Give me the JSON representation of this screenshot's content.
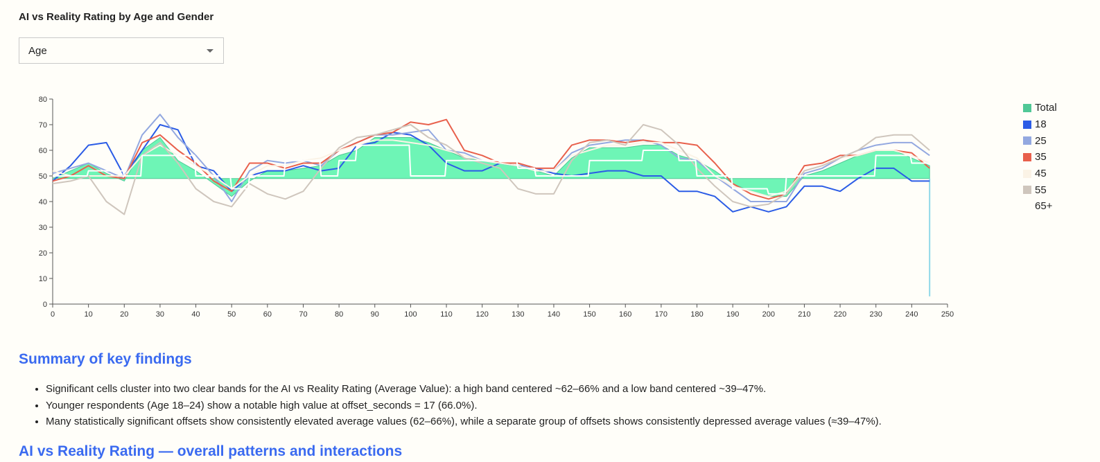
{
  "page": {
    "title": "AI vs Reality Rating by Age and Gender"
  },
  "filter": {
    "selected": "Age",
    "icon": "chevron-down-icon"
  },
  "legend": [
    {
      "label": "Total",
      "color": "#50c896"
    },
    {
      "label": "18",
      "color": "#2b5ce6"
    },
    {
      "label": "25",
      "color": "#93a8e0"
    },
    {
      "label": "35",
      "color": "#e8604c"
    },
    {
      "label": "45",
      "color": "#fbf3e6"
    },
    {
      "label": "55",
      "color": "#cfc6bd"
    },
    {
      "label": "65+",
      "color": "#fffef9"
    }
  ],
  "chart_data": {
    "type": "line",
    "xlabel": "",
    "ylabel": "",
    "xlim": [
      0,
      250
    ],
    "ylim": [
      0,
      80
    ],
    "xticks": [
      0,
      10,
      20,
      30,
      40,
      50,
      60,
      70,
      80,
      90,
      100,
      110,
      120,
      130,
      140,
      150,
      160,
      170,
      180,
      190,
      200,
      210,
      220,
      230,
      240,
      250
    ],
    "yticks": [
      0,
      10,
      20,
      30,
      40,
      50,
      60,
      70,
      80
    ],
    "baseline": 49,
    "legend_position": "right",
    "grid": false,
    "x": [
      0,
      5,
      10,
      15,
      20,
      25,
      30,
      35,
      40,
      45,
      50,
      55,
      60,
      65,
      70,
      75,
      80,
      85,
      90,
      95,
      100,
      105,
      110,
      115,
      120,
      125,
      130,
      135,
      140,
      145,
      150,
      155,
      160,
      165,
      170,
      175,
      180,
      185,
      190,
      195,
      200,
      205,
      210,
      215,
      220,
      225,
      230,
      235,
      240,
      245
    ],
    "series": [
      {
        "name": "Total",
        "color": "#50c896",
        "style": "area",
        "values": [
          49,
          52,
          55,
          51,
          48,
          60,
          65,
          56,
          52,
          47,
          42,
          48,
          52,
          52,
          53,
          54,
          58,
          60,
          65,
          65,
          65,
          63,
          60,
          57,
          56,
          55,
          54,
          52,
          50,
          57,
          61,
          61,
          61,
          62,
          62,
          58,
          56,
          52,
          47,
          44,
          42,
          42,
          50,
          52,
          55,
          58,
          60,
          60,
          57,
          54
        ]
      },
      {
        "name": "18",
        "color": "#2b5ce6",
        "style": "line",
        "values": [
          48,
          54,
          62,
          63,
          50,
          60,
          70,
          68,
          54,
          52,
          44,
          50,
          52,
          52,
          54,
          52,
          53,
          62,
          63,
          67,
          66,
          62,
          55,
          52,
          52,
          55,
          54,
          53,
          51,
          50,
          51,
          52,
          52,
          50,
          50,
          44,
          44,
          42,
          36,
          38,
          36,
          38,
          46,
          46,
          44,
          49,
          53,
          53,
          48,
          48
        ]
      },
      {
        "name": "25",
        "color": "#93a8e0",
        "style": "line",
        "values": [
          51,
          53,
          55,
          52,
          49,
          66,
          74,
          65,
          58,
          50,
          40,
          52,
          56,
          55,
          56,
          54,
          60,
          63,
          66,
          66,
          67,
          68,
          60,
          59,
          56,
          55,
          55,
          52,
          52,
          59,
          62,
          63,
          64,
          64,
          62,
          57,
          56,
          50,
          45,
          40,
          40,
          40,
          51,
          53,
          57,
          60,
          62,
          63,
          63,
          58
        ]
      },
      {
        "name": "35",
        "color": "#e8604c",
        "style": "line",
        "values": [
          48,
          50,
          54,
          50,
          49,
          63,
          66,
          60,
          55,
          48,
          44,
          55,
          55,
          53,
          55,
          55,
          60,
          63,
          66,
          67,
          71,
          70,
          72,
          60,
          58,
          55,
          55,
          53,
          53,
          62,
          64,
          64,
          63,
          64,
          63,
          63,
          62,
          55,
          47,
          43,
          41,
          43,
          54,
          55,
          58,
          58,
          60,
          60,
          59,
          53
        ]
      },
      {
        "name": "45",
        "color": "#fbf3e6",
        "style": "line",
        "values": [
          52,
          50,
          50,
          50,
          50,
          58,
          62,
          58,
          54,
          50,
          45,
          50,
          54,
          54,
          56,
          57,
          60,
          62,
          64,
          64,
          63,
          62,
          60,
          58,
          56,
          55,
          54,
          52,
          52,
          58,
          60,
          62,
          62,
          63,
          63,
          60,
          57,
          50,
          46,
          44,
          42,
          44,
          52,
          54,
          57,
          58,
          60,
          60,
          58,
          55
        ]
      },
      {
        "name": "55",
        "color": "#cfc6bd",
        "style": "line",
        "values": [
          47,
          48,
          50,
          40,
          35,
          58,
          63,
          55,
          45,
          40,
          38,
          47,
          43,
          41,
          44,
          53,
          61,
          65,
          66,
          68,
          70,
          65,
          62,
          57,
          55,
          53,
          45,
          43,
          43,
          56,
          63,
          64,
          62,
          70,
          68,
          62,
          53,
          46,
          40,
          38,
          39,
          43,
          52,
          54,
          57,
          60,
          65,
          66,
          66,
          60
        ]
      },
      {
        "name": "65+",
        "color": "#ffffff",
        "style": "step",
        "values": [
          50,
          50,
          52,
          52,
          50,
          58,
          58,
          58,
          50,
          50,
          45,
          50,
          50,
          56,
          56,
          50,
          56,
          62,
          62,
          62,
          50,
          50,
          56,
          56,
          56,
          56,
          53,
          50,
          50,
          50,
          56,
          56,
          56,
          60,
          60,
          56,
          50,
          50,
          45,
          45,
          43,
          50,
          50,
          50,
          50,
          50,
          58,
          58,
          55,
          55
        ]
      }
    ]
  },
  "sections": {
    "summary_heading": "Summary of key findings",
    "findings": [
      "Significant cells cluster into two clear bands for the AI vs Reality Rating (Average Value): a high band centered ~62–66% and a low band centered ~39–47%.",
      "Younger respondents (Age 18–24) show a notable high value at offset_seconds = 17 (66.0%).",
      "Many statistically significant offsets show consistently elevated average values (62–66%), while a separate group of offsets shows consistently depressed average values (≈39–47%)."
    ],
    "next_heading": "AI vs Reality Rating — overall patterns and interactions"
  }
}
